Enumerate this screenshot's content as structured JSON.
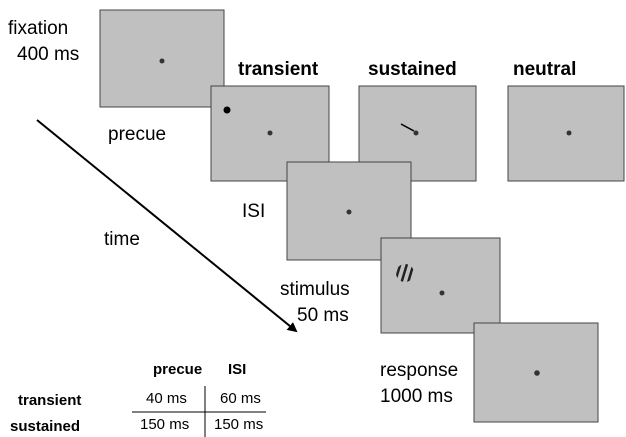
{
  "fixation": {
    "label": "fixation",
    "duration": "400 ms"
  },
  "conditions": [
    "transient",
    "sustained",
    "neutral"
  ],
  "precue_label": "precue",
  "isi_label": "ISI",
  "time_label": "time",
  "stimulus": {
    "label": "stimulus",
    "duration": "50 ms"
  },
  "response": {
    "label": "response",
    "duration": "1000 ms"
  },
  "table": {
    "columns": [
      "precue",
      "ISI"
    ],
    "rows": [
      {
        "label": "transient",
        "cells": [
          "40 ms",
          "60 ms"
        ]
      },
      {
        "label": "sustained",
        "cells": [
          "150 ms",
          "150 ms"
        ]
      }
    ]
  }
}
